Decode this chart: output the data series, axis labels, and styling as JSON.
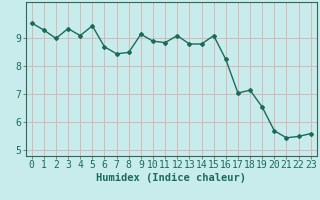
{
  "x": [
    0,
    1,
    2,
    3,
    4,
    5,
    6,
    7,
    8,
    9,
    10,
    11,
    12,
    13,
    14,
    15,
    16,
    17,
    18,
    19,
    20,
    21,
    22,
    23
  ],
  "y": [
    9.55,
    9.3,
    9.0,
    9.35,
    9.1,
    9.45,
    8.7,
    8.45,
    8.5,
    9.15,
    8.9,
    8.85,
    9.1,
    8.8,
    8.8,
    9.1,
    8.25,
    7.05,
    7.15,
    6.55,
    5.7,
    5.45,
    5.5,
    5.6
  ],
  "line_color": "#1a6b5a",
  "marker": "D",
  "marker_size": 2.0,
  "bg_color": "#c8ecec",
  "grid_color": "#dbb0b0",
  "axis_color": "#336655",
  "xlabel": "Humidex (Indice chaleur)",
  "ylabel": "",
  "xlim": [
    -0.5,
    23.5
  ],
  "ylim": [
    4.8,
    10.3
  ],
  "yticks": [
    5,
    6,
    7,
    8,
    9
  ],
  "xticks": [
    0,
    1,
    2,
    3,
    4,
    5,
    6,
    7,
    8,
    9,
    10,
    11,
    12,
    13,
    14,
    15,
    16,
    17,
    18,
    19,
    20,
    21,
    22,
    23
  ],
  "label_fontsize": 7.5,
  "tick_fontsize": 7.0
}
